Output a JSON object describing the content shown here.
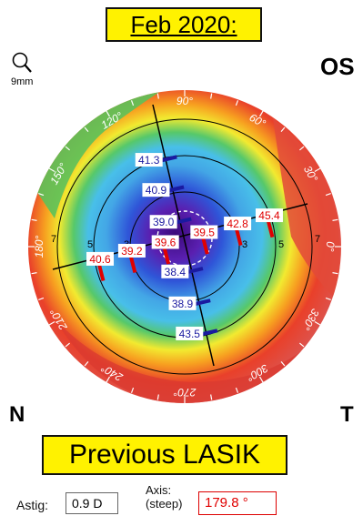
{
  "header": {
    "date": "Feb 2020:",
    "eye": "OS"
  },
  "zoom": {
    "icon": "magnifier-icon",
    "label": "9mm"
  },
  "orientation": {
    "nasal": "N",
    "temporal": "T"
  },
  "degrees": [
    {
      "label": "120°",
      "deg": 120
    },
    {
      "label": "90°",
      "deg": 90
    },
    {
      "label": "60°",
      "deg": 60
    },
    {
      "label": "150°",
      "deg": 150
    },
    {
      "label": "30°",
      "deg": 30
    },
    {
      "label": "180°",
      "deg": 180
    },
    {
      "label": "0°",
      "deg": 0
    },
    {
      "label": "210°",
      "deg": 210
    },
    {
      "label": "330°",
      "deg": 330
    },
    {
      "label": "240°",
      "deg": 240
    },
    {
      "label": "270°",
      "deg": 270
    },
    {
      "label": "300°",
      "deg": 300
    }
  ],
  "rings": [
    {
      "label": "3"
    },
    {
      "label": "5"
    },
    {
      "label": "7"
    }
  ],
  "readings": {
    "flat_axis": [
      {
        "value": "39.0",
        "mm": 1.4,
        "side": "upper"
      },
      {
        "value": "40.9",
        "mm": 3.2,
        "side": "upper"
      },
      {
        "value": "41.3",
        "mm": 4.9,
        "side": "upper"
      },
      {
        "value": "38.4",
        "mm": 1.4,
        "side": "lower"
      },
      {
        "value": "38.9",
        "mm": 3.2,
        "side": "lower"
      },
      {
        "value": "43.5",
        "mm": 4.9,
        "side": "lower"
      }
    ],
    "steep_axis": [
      {
        "value": "39.5",
        "mm": 1.1,
        "side": "right"
      },
      {
        "value": "42.8",
        "mm": 3.0,
        "side": "right"
      },
      {
        "value": "45.4",
        "mm": 4.8,
        "side": "right"
      },
      {
        "value": "39.6",
        "mm": 1.1,
        "side": "left"
      },
      {
        "value": "39.2",
        "mm": 3.0,
        "side": "left"
      },
      {
        "value": "40.6",
        "mm": 4.8,
        "side": "left"
      }
    ]
  },
  "note": "Previous LASIK",
  "astig": {
    "label": "Astig:",
    "value": "0.9 D"
  },
  "axis": {
    "label_line1": "Axis:",
    "label_line2": "(steep)",
    "value": "179.8 °"
  },
  "colors": {
    "steep_label": "#e00000",
    "flat_label": "#1a1aa0",
    "banner": "#fff200"
  }
}
